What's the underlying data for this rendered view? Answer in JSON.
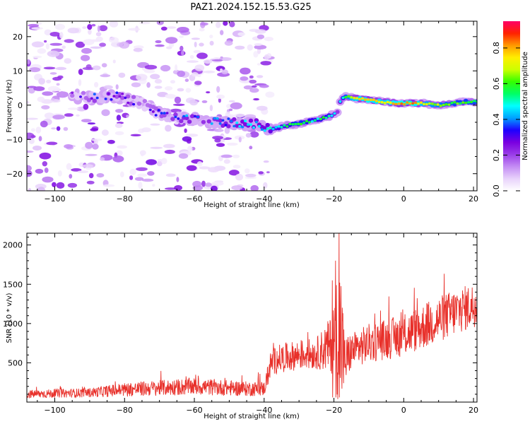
{
  "figure": {
    "title": "PAZ1.2024.152.15.53.G25"
  },
  "colors": {
    "snr_line": "#e8302a",
    "axis": "#000000",
    "colormap": [
      "#ffffff",
      "#e8d2fb",
      "#c48cf4",
      "#9a3ce8",
      "#7a00e0",
      "#1e00ff",
      "#00a0ff",
      "#00ffff",
      "#00ff66",
      "#33ff00",
      "#ccff00",
      "#ffee00",
      "#ff9900",
      "#ff2200",
      "#ff0066"
    ]
  },
  "chart_data": [
    {
      "type": "heatmap",
      "name": "spectrogram",
      "xlabel": "Height of straight line (km)",
      "ylabel": "Frequency (Hz)",
      "xlim": [
        -108,
        21
      ],
      "ylim": [
        -25,
        24.5
      ],
      "xticks": [
        -100,
        -80,
        -60,
        -40,
        -20,
        0,
        20
      ],
      "yticks": [
        -20,
        -10,
        0,
        10,
        20
      ],
      "colorbar": {
        "label": "Normalized spectral amplitude",
        "range": [
          0.0,
          0.95
        ],
        "ticks": [
          "0.0",
          "0.2",
          "0.4",
          "0.6",
          "0.8"
        ]
      },
      "ridge": {
        "x": [
          -92,
          -88,
          -82,
          -78,
          -74,
          -70,
          -66,
          -62,
          -58,
          -54,
          -50,
          -46,
          -42,
          -38,
          -34,
          -30,
          -26,
          -22,
          -19,
          -18,
          -17,
          -14,
          -10,
          -6,
          -2,
          2,
          6,
          10,
          14,
          18,
          21
        ],
        "y": [
          2.5,
          2,
          2.5,
          1.5,
          0,
          -2.5,
          -3.5,
          -4,
          -4.5,
          -5,
          -5,
          -5.5,
          -5.5,
          -7,
          -6,
          -5.5,
          -4.5,
          -3.5,
          -2,
          1.5,
          2.5,
          2,
          1.5,
          1,
          0.5,
          0.5,
          0.5,
          0,
          0.5,
          1,
          1
        ],
        "amplitude": [
          0.3,
          0.4,
          0.35,
          0.35,
          0.3,
          0.35,
          0.4,
          0.45,
          0.4,
          0.45,
          0.45,
          0.5,
          0.5,
          0.55,
          0.6,
          0.7,
          0.6,
          0.65,
          0.4,
          0.55,
          0.7,
          0.85,
          0.9,
          0.85,
          0.9,
          0.95,
          0.8,
          0.75,
          0.7,
          0.7,
          0.7
        ]
      }
    },
    {
      "type": "line",
      "name": "snr",
      "xlabel": "Height of straight line (km)",
      "ylabel": "SNR (10 * v/v)",
      "xlim": [
        -108,
        21
      ],
      "ylim": [
        0,
        2150
      ],
      "xticks": [
        -100,
        -80,
        -60,
        -40,
        -20,
        0,
        20
      ],
      "yticks": [
        500,
        1000,
        1500,
        2000
      ],
      "trend": {
        "x": [
          -108,
          -100,
          -90,
          -80,
          -70,
          -60,
          -50,
          -45,
          -40,
          -38,
          -36,
          -30,
          -25,
          -20,
          -19,
          -18,
          -17,
          -15,
          -10,
          -5,
          0,
          5,
          10,
          15,
          21
        ],
        "mean": [
          100,
          110,
          120,
          160,
          180,
          200,
          180,
          170,
          170,
          500,
          550,
          600,
          620,
          750,
          950,
          850,
          500,
          650,
          750,
          800,
          850,
          950,
          1050,
          1150,
          1250
        ],
        "noise": [
          55,
          55,
          60,
          90,
          100,
          110,
          100,
          95,
          95,
          170,
          180,
          190,
          200,
          400,
          900,
          1000,
          350,
          230,
          250,
          260,
          270,
          290,
          300,
          300,
          280
        ]
      },
      "peaks": [
        {
          "x": -18.5,
          "y": 2150
        },
        {
          "x": -19.5,
          "y": 1800
        },
        {
          "x": -20.5,
          "y": 1550
        }
      ]
    }
  ]
}
